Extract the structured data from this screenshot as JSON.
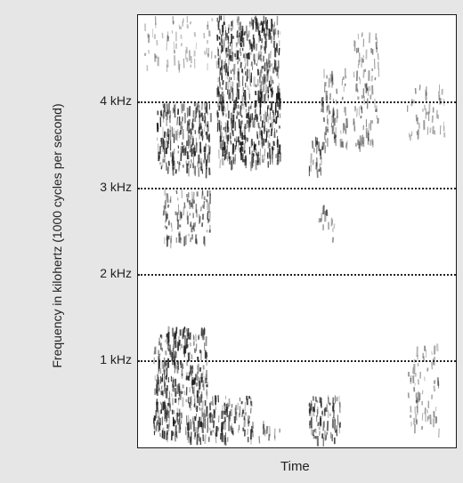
{
  "chart_data": {
    "type": "heatmap",
    "subtype": "spectrogram",
    "title": "",
    "xlabel": "Time",
    "ylabel": "Frequency in kilohertz (1000 cycles per second)",
    "yticks": [
      {
        "value": 1,
        "label": "1 kHz"
      },
      {
        "value": 2,
        "label": "2 kHz"
      },
      {
        "value": 3,
        "label": "3 kHz"
      },
      {
        "value": 4,
        "label": "4 kHz"
      }
    ],
    "ylim": [
      0,
      5.0
    ],
    "xlim": [
      0,
      1
    ],
    "grid": "dotted horizontal lines at each kHz tick",
    "colors": {
      "background": "#e6e6e6",
      "plot": "#ffffff",
      "energy": "#1a1a1a"
    },
    "energy_regions": [
      {
        "x": [
          0.06,
          0.23
        ],
        "y": [
          3.2,
          4.0
        ],
        "intensity": 0.9
      },
      {
        "x": [
          0.25,
          0.45
        ],
        "y": [
          3.3,
          5.0
        ],
        "intensity": 0.95
      },
      {
        "x": [
          0.08,
          0.23
        ],
        "y": [
          2.4,
          3.0
        ],
        "intensity": 0.6
      },
      {
        "x": [
          0.05,
          0.22
        ],
        "y": [
          0.1,
          1.4
        ],
        "intensity": 0.9
      },
      {
        "x": [
          0.22,
          0.36
        ],
        "y": [
          0.1,
          0.6
        ],
        "intensity": 0.8
      },
      {
        "x": [
          0.36,
          0.45
        ],
        "y": [
          0.1,
          0.3
        ],
        "intensity": 0.4
      },
      {
        "x": [
          0.54,
          0.64
        ],
        "y": [
          0.1,
          0.6
        ],
        "intensity": 0.8
      },
      {
        "x": [
          0.54,
          0.58
        ],
        "y": [
          3.2,
          3.6
        ],
        "intensity": 0.7
      },
      {
        "x": [
          0.58,
          0.66
        ],
        "y": [
          3.4,
          4.4
        ],
        "intensity": 0.5
      },
      {
        "x": [
          0.68,
          0.76
        ],
        "y": [
          3.5,
          4.8
        ],
        "intensity": 0.45
      },
      {
        "x": [
          0.57,
          0.62
        ],
        "y": [
          2.4,
          2.8
        ],
        "intensity": 0.4
      },
      {
        "x": [
          0.85,
          0.95
        ],
        "y": [
          0.2,
          1.2
        ],
        "intensity": 0.35
      },
      {
        "x": [
          0.85,
          0.97
        ],
        "y": [
          3.6,
          4.2
        ],
        "intensity": 0.3
      },
      {
        "x": [
          0.02,
          0.3
        ],
        "y": [
          4.4,
          5.0
        ],
        "intensity": 0.25
      }
    ]
  }
}
